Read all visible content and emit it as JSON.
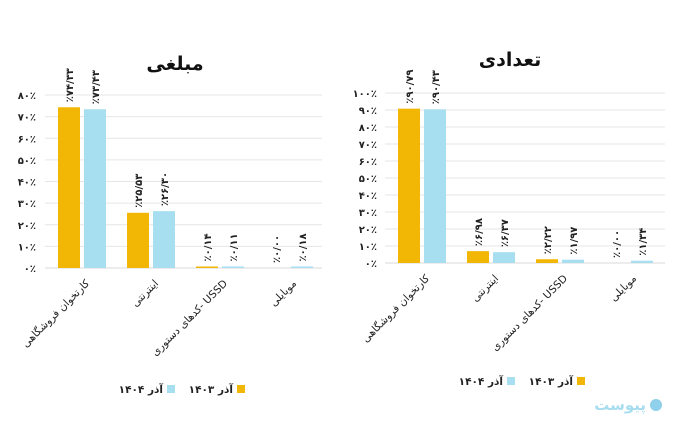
{
  "colors": {
    "series_1403": "#f2b705",
    "series_1404": "#a8dff0",
    "grid": "#e6e6e6"
  },
  "watermark": "پیوست",
  "chart_data": [
    {
      "type": "bar",
      "title": "مبلغی",
      "categories": [
        "کارتخوان فروشگاهی",
        "اینترنتی",
        "کدهای دستوری- USSD",
        "موبایلی"
      ],
      "ylim": [
        0,
        80
      ],
      "yticks": [
        0,
        10,
        20,
        30,
        40,
        50,
        60,
        70,
        80
      ],
      "ytick_labels": [
        "۰٪",
        "۱۰٪",
        "۲۰٪",
        "۳۰٪",
        "۴۰٪",
        "۵۰٪",
        "۶۰٪",
        "۷۰٪",
        "۸۰٪"
      ],
      "grid": true,
      "legend": "bottom",
      "series": [
        {
          "name": "آذر ۱۴۰۳",
          "color": "#f2b705",
          "values": [
            74.33,
            25.53,
            0.14,
            0.0
          ],
          "labels": [
            "٪۷۴/۳۳",
            "٪۲۵/۵۳",
            "٪۰/۱۴",
            "٪۰/۰۰"
          ]
        },
        {
          "name": "آذر ۱۴۰۴",
          "color": "#a8dff0",
          "values": [
            73.43,
            26.3,
            0.11,
            0.18
          ],
          "labels": [
            "٪۷۳/۴۳",
            "٪۲۶/۳۰",
            "٪۰/۱۱",
            "٪۰/۱۸"
          ]
        }
      ]
    },
    {
      "type": "bar",
      "title": "تعدادی",
      "categories": [
        "کارتخوان فروشگاهی",
        "اینترنتی",
        "کدهای دستوری- USSD",
        "موبایلی"
      ],
      "ylim": [
        0,
        100
      ],
      "yticks": [
        0,
        10,
        20,
        30,
        40,
        50,
        60,
        70,
        80,
        90,
        100
      ],
      "ytick_labels": [
        "۰٪",
        "۱۰٪",
        "۲۰٪",
        "۳۰٪",
        "۴۰٪",
        "۵۰٪",
        "۶۰٪",
        "۷۰٪",
        "۸۰٪",
        "۹۰٪",
        "۱۰۰٪"
      ],
      "grid": true,
      "legend": "bottom",
      "series": [
        {
          "name": "آذر ۱۴۰۳",
          "color": "#f2b705",
          "values": [
            90.79,
            6.98,
            2.22,
            0.0
          ],
          "labels": [
            "٪۹۰/۷۹",
            "٪۶/۹۸",
            "٪۲/۲۲",
            "٪۰/۰۰"
          ]
        },
        {
          "name": "آذر ۱۴۰۴",
          "color": "#a8dff0",
          "values": [
            90.43,
            6.37,
            1.97,
            1.34
          ],
          "labels": [
            "٪۹۰/۴۳",
            "٪۶/۳۷",
            "٪۱/۹۷",
            "٪۱/۳۴"
          ]
        }
      ]
    }
  ]
}
